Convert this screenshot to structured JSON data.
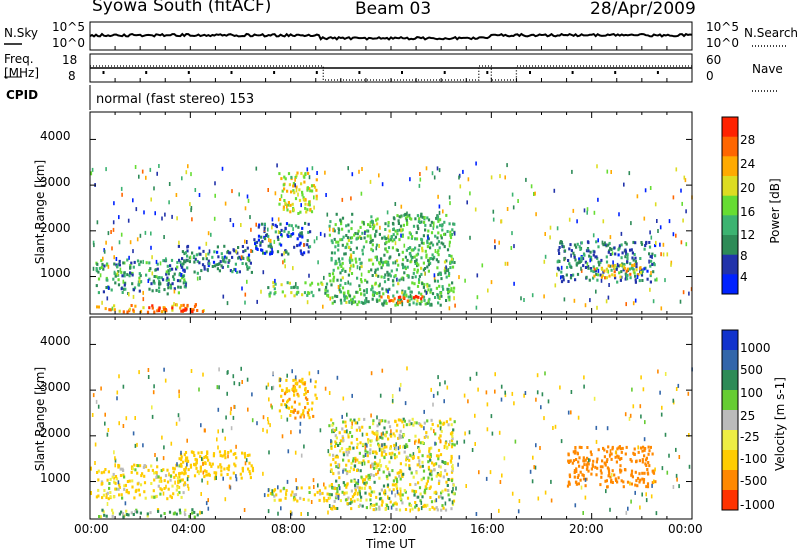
{
  "header": {
    "station": "Syowa South (fitACF)",
    "beam": "Beam 03",
    "date": "28/Apr/2009"
  },
  "top_panels": {
    "nsky_label": "N.Sky",
    "nsky_ticks": [
      "10^5",
      "10^0"
    ],
    "nsearch_label": "N.Search",
    "nsearch_ticks": [
      "10^5",
      "10^0"
    ],
    "freq_label_1": "Freq.",
    "freq_label_2": "[MHz]",
    "freq_ticks": [
      "18",
      "8"
    ],
    "nave_label": "Nave",
    "nave_ticks": [
      "60",
      "0"
    ],
    "cpid_label": "CPID",
    "cpid_text": "normal (fast stereo) 153"
  },
  "axes": {
    "ylabel": "Slant Range [km]",
    "xlabel": "Time UT",
    "yticks": [
      "4000",
      "3000",
      "2000",
      "1000"
    ],
    "xticks": [
      "00:00",
      "04:00",
      "08:00",
      "12:00",
      "16:00",
      "20:00",
      "00:00"
    ]
  },
  "colors": {
    "power_scale": [
      "#0022ff",
      "#2233aa",
      "#2e8b57",
      "#3cb371",
      "#66dd33",
      "#dddd22",
      "#ffaa00",
      "#ff6600",
      "#ff2200"
    ],
    "velocity_scale": [
      "#1133cc",
      "#3366aa",
      "#2e8b57",
      "#66cc33",
      "#bbbbbb",
      "#eeee44",
      "#ffcc00",
      "#ff8800",
      "#ff3300"
    ],
    "ground_scatter": "#888888"
  },
  "chart_data": [
    {
      "type": "heatmap",
      "title": "Power",
      "xlabel": "Time UT",
      "ylabel": "Slant Range [km]",
      "x_range_hours": [
        0,
        24
      ],
      "ylim": [
        180,
        4600
      ],
      "colorbar": {
        "label": "Power [dB]",
        "ticks": [
          "28",
          "24",
          "20",
          "16",
          "12",
          "8",
          "4"
        ],
        "range": [
          0,
          30
        ]
      },
      "regions": [
        {
          "t": [
            0.2,
            3.8
          ],
          "r": [
            650,
            1400
          ],
          "value": 10
        },
        {
          "t": [
            0.2,
            4.5
          ],
          "r": [
            250,
            420
          ],
          "value": 22
        },
        {
          "t": [
            2.3,
            4.2
          ],
          "r": [
            250,
            350
          ],
          "value": 27
        },
        {
          "t": [
            3.5,
            6.5
          ],
          "r": [
            1100,
            1700
          ],
          "value": 8
        },
        {
          "t": [
            6.5,
            8.8
          ],
          "r": [
            1500,
            2200
          ],
          "value": 6
        },
        {
          "t": [
            7.5,
            9.0
          ],
          "r": [
            2400,
            3300
          ],
          "value": 18
        },
        {
          "t": [
            7.0,
            9.5
          ],
          "r": [
            600,
            900
          ],
          "value": 14
        },
        {
          "t": [
            9.5,
            14.5
          ],
          "r": [
            400,
            2400
          ],
          "value": 12
        },
        {
          "t": [
            11.5,
            13.3
          ],
          "r": [
            450,
            600
          ],
          "value": 26
        },
        {
          "t": [
            18.6,
            22.5
          ],
          "r": [
            900,
            1800
          ],
          "value": 8
        },
        {
          "t": [
            20.0,
            22.0
          ],
          "r": [
            1000,
            1300
          ],
          "value": 20
        }
      ]
    },
    {
      "type": "heatmap",
      "title": "Velocity",
      "xlabel": "Time UT",
      "ylabel": "Slant Range [km]",
      "x_range_hours": [
        0,
        24
      ],
      "ylim": [
        180,
        4600
      ],
      "colorbar": {
        "label": "Velocity [m s-1]",
        "ticks": [
          "1000",
          "500",
          "100",
          "25",
          "-25",
          "-100",
          "-500",
          "-1000"
        ],
        "range": [
          -1000,
          1000
        ]
      },
      "regions": [
        {
          "t": [
            0.2,
            3.8
          ],
          "r": [
            650,
            1400
          ],
          "value": -150
        },
        {
          "t": [
            0.2,
            4.5
          ],
          "r": [
            250,
            420
          ],
          "value": 80
        },
        {
          "t": [
            3.5,
            6.5
          ],
          "r": [
            1100,
            1700
          ],
          "value": -300
        },
        {
          "t": [
            7.5,
            9.0
          ],
          "r": [
            2400,
            3300
          ],
          "value": -400
        },
        {
          "t": [
            7.0,
            9.5
          ],
          "r": [
            600,
            900
          ],
          "value": -120
        },
        {
          "t": [
            9.5,
            14.5
          ],
          "r": [
            400,
            2400
          ],
          "value": -60
        },
        {
          "t": [
            19.0,
            22.5
          ],
          "r": [
            900,
            1800
          ],
          "value": -700
        }
      ]
    }
  ]
}
